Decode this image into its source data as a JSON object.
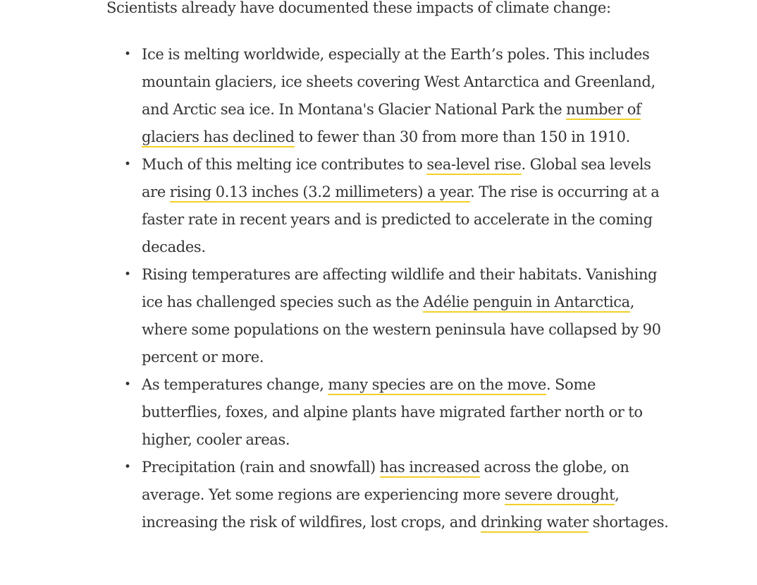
{
  "intro": "Scientists already have documented these impacts of climate change:",
  "bullet_char": "•",
  "items": [
    {
      "segments": [
        {
          "text": "Ice is melting worldwide, especially at the Earth’s poles. This includes mountain glaciers, ice sheets covering West Antarctica and Greenland, and Arctic sea ice. In Montana's Glacier National Park the "
        },
        {
          "text": "number of glaciers has declined",
          "link": true
        },
        {
          "text": " to fewer than 30 from more than 150 in 1910."
        }
      ]
    },
    {
      "segments": [
        {
          "text": "Much of this melting ice contributes to "
        },
        {
          "text": "sea-level rise",
          "link": true
        },
        {
          "text": ". Global sea levels are "
        },
        {
          "text": "rising 0.13 inches (3.2 millimeters) a year",
          "link": true
        },
        {
          "text": ". The rise is occurring at a faster rate in recent years and is predicted to accelerate in the coming decades."
        }
      ]
    },
    {
      "segments": [
        {
          "text": "Rising temperatures are affecting wildlife and their habitats. Vanishing ice has challenged species such as the "
        },
        {
          "text": "Adélie penguin in Antarctica",
          "link": true
        },
        {
          "text": ", where some populations on the western peninsula have collapsed by 90 percent or more."
        }
      ]
    },
    {
      "segments": [
        {
          "text": "As temperatures change, "
        },
        {
          "text": "many species are on the move",
          "link": true
        },
        {
          "text": ". Some butterflies, foxes, and alpine plants have migrated farther north or to higher, cooler areas."
        }
      ]
    },
    {
      "segments": [
        {
          "text": "Precipitation (rain and snowfall) "
        },
        {
          "text": "has increased",
          "link": true
        },
        {
          "text": " across the globe, on average. Yet some regions are experiencing more "
        },
        {
          "text": "severe drought",
          "link": true
        },
        {
          "text": ", increasing the risk of wildfires, lost crops, and "
        },
        {
          "text": "drinking water",
          "link": true
        },
        {
          "text": " shortages."
        }
      ]
    }
  ],
  "colors": {
    "text": "#333333",
    "link_underline": "#f2cf29",
    "background": "#ffffff"
  }
}
